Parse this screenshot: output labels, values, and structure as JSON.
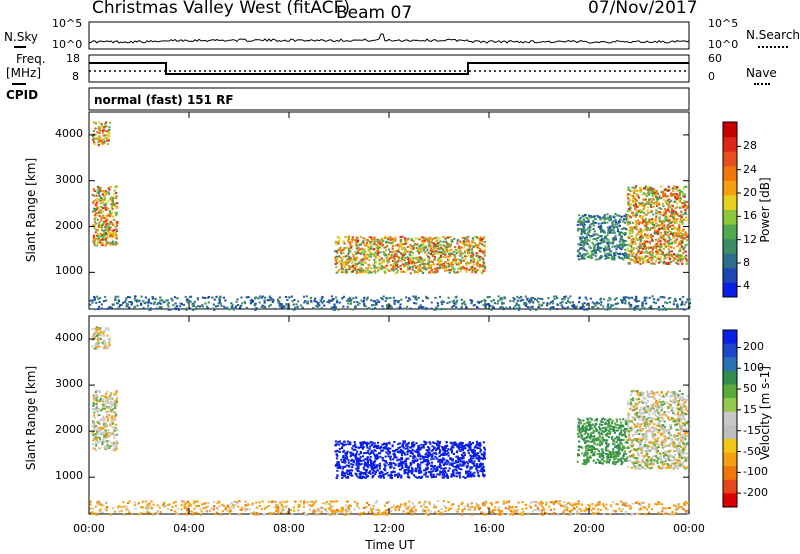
{
  "header": {
    "title": "Christmas Valley West (fitACF)",
    "beam": "Beam 07",
    "date": "07/Nov/2017"
  },
  "strips": {
    "nsky_label": "N.Sky",
    "nsky_ticks": [
      "10^5",
      "10^0"
    ],
    "nsearch_label": "N.Search",
    "nsearch_ticks": [
      "10^5",
      "10^0"
    ],
    "freq_label": "Freq.",
    "freq_unit": "[MHz]",
    "freq_ticks": [
      "18",
      "8"
    ],
    "nave_label": "Nave",
    "nave_ticks": [
      "60",
      "0"
    ],
    "cpid_label": "CPID",
    "cpid_value": "normal (fast) 151 RF"
  },
  "colors": {
    "power": [
      "#0a1ee6",
      "#1e46b4",
      "#2d6e8c",
      "#3c8c64",
      "#50aa50",
      "#8cc83c",
      "#e6d21e",
      "#f5a00f",
      "#f0780a",
      "#e6501e",
      "#dc2814",
      "#c80000"
    ],
    "velocity": [
      "#0a1ee6",
      "#1e46c8",
      "#2873b4",
      "#328c50",
      "#5aaa3c",
      "#96c850",
      "#c8c8c8",
      "#bebebe",
      "#f0c814",
      "#f5a00f",
      "#f0780a",
      "#e6461e",
      "#dc0000"
    ]
  },
  "chart_data": [
    {
      "type": "heatmap",
      "panel": "power",
      "xlabel": "",
      "ylabel": "Slant Range [km]",
      "x_ticks": [
        "00:00",
        "04:00",
        "08:00",
        "12:00",
        "16:00",
        "20:00",
        "00:00"
      ],
      "xlim_hours": [
        0,
        24
      ],
      "y_ticks": [
        1000,
        2000,
        3000,
        4000
      ],
      "ylim": [
        200,
        4500
      ],
      "colorbar_label": "Power [dB]",
      "colorbar_ticks": [
        "4",
        "8",
        "12",
        "16",
        "20",
        "24",
        "28"
      ],
      "colorbar_range": [
        0,
        30
      ],
      "regions": [
        {
          "t0": 0.1,
          "t1": 1.1,
          "r0": 1600,
          "r1": 2900,
          "peak": 27
        },
        {
          "t0": 0.1,
          "t1": 0.8,
          "r0": 3800,
          "r1": 4300,
          "peak": 26
        },
        {
          "t0": 9.8,
          "t1": 15.8,
          "r0": 1000,
          "r1": 1800,
          "peak": 26
        },
        {
          "t0": 19.5,
          "t1": 21.5,
          "r0": 1300,
          "r1": 2300,
          "peak": 12
        },
        {
          "t0": 21.5,
          "t1": 23.9,
          "r0": 1200,
          "r1": 2900,
          "peak": 27
        },
        {
          "t0": 0.0,
          "t1": 24.0,
          "r0": 200,
          "r1": 500,
          "peak": 10
        }
      ]
    },
    {
      "type": "heatmap",
      "panel": "velocity",
      "xlabel": "Time UT",
      "ylabel": "Slant Range [km]",
      "x_ticks": [
        "00:00",
        "04:00",
        "08:00",
        "12:00",
        "16:00",
        "20:00",
        "00:00"
      ],
      "xlim_hours": [
        0,
        24
      ],
      "y_ticks": [
        1000,
        2000,
        3000,
        4000
      ],
      "ylim": [
        200,
        4500
      ],
      "colorbar_label": "Velocity [m s-1]",
      "colorbar_ticks": [
        "200",
        "100",
        "50",
        "15",
        "-15",
        "-50",
        "-100",
        "-200"
      ],
      "colorbar_range": [
        -250,
        250
      ],
      "regions": [
        {
          "t0": 0.1,
          "t1": 1.1,
          "r0": 1600,
          "r1": 2900,
          "value": 0
        },
        {
          "t0": 0.1,
          "t1": 0.8,
          "r0": 3800,
          "r1": 4300,
          "value": -10
        },
        {
          "t0": 9.8,
          "t1": 15.8,
          "r0": 1000,
          "r1": 1800,
          "value": 230
        },
        {
          "t0": 19.5,
          "t1": 21.5,
          "r0": 1300,
          "r1": 2300,
          "value": 60
        },
        {
          "t0": 21.5,
          "t1": 23.9,
          "r0": 1200,
          "r1": 2900,
          "value": 0
        },
        {
          "t0": 0.0,
          "t1": 24.0,
          "r0": 200,
          "r1": 500,
          "value": -30
        }
      ]
    }
  ]
}
